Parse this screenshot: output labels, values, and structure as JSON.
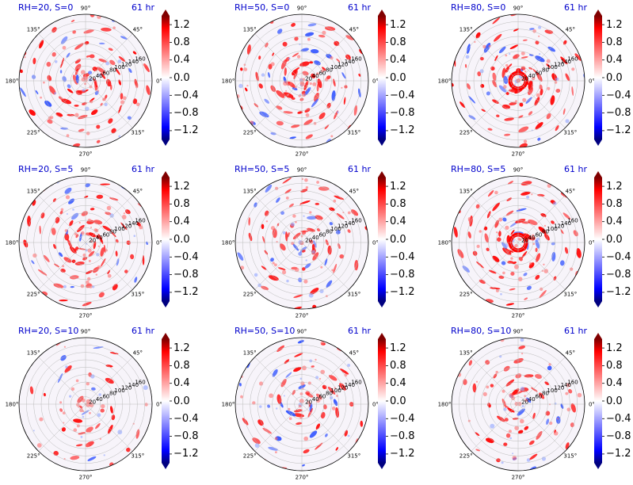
{
  "figure_title": "",
  "time_label": "61 hr",
  "angle_labels": [
    "90°",
    "45°",
    "0°",
    "315°",
    "270°",
    "225°",
    "180°",
    "135°"
  ],
  "radial_ticks": [
    "20",
    "40",
    "60",
    "80",
    "100",
    "120",
    "140",
    "160"
  ],
  "colorbar": {
    "ticks": [
      "1.2",
      "0.8",
      "0.4",
      "0.0",
      "−0.4",
      "−0.8",
      "−1.2"
    ],
    "colormap": "bwr",
    "vmin": -1.4,
    "vmax": 1.4,
    "extend": "both"
  },
  "chart_data": [
    {
      "type": "heatmap",
      "projection": "polar",
      "title": "RH=20, S=0",
      "time": "61 hr",
      "rlim": [
        0,
        180
      ],
      "clim": [
        -1.4,
        1.4
      ],
      "pattern": "multiple spiral rainbands, strong positive streaks throughout"
    },
    {
      "type": "heatmap",
      "projection": "polar",
      "title": "RH=50, S=0",
      "time": "61 hr",
      "rlim": [
        0,
        180
      ],
      "clim": [
        -1.4,
        1.4
      ],
      "pattern": "well-organized spiral rainbands"
    },
    {
      "type": "heatmap",
      "projection": "polar",
      "title": "RH=80, S=0",
      "time": "61 hr",
      "rlim": [
        0,
        180
      ],
      "clim": [
        -1.4,
        1.4
      ],
      "pattern": "compact eyewall ring near center"
    },
    {
      "type": "heatmap",
      "projection": "polar",
      "title": "RH=20, S=5",
      "time": "61 hr",
      "rlim": [
        0,
        180
      ],
      "clim": [
        -1.4,
        1.4
      ],
      "pattern": "scattered spiral bands"
    },
    {
      "type": "heatmap",
      "projection": "polar",
      "title": "RH=50, S=5",
      "time": "61 hr",
      "rlim": [
        0,
        180
      ],
      "clim": [
        -1.4,
        1.4
      ],
      "pattern": "spiral bands around center"
    },
    {
      "type": "heatmap",
      "projection": "polar",
      "title": "RH=80, S=5",
      "time": "61 hr",
      "rlim": [
        0,
        180
      ],
      "clim": [
        -1.4,
        1.4
      ],
      "pattern": "tight eyewall with bands"
    },
    {
      "type": "heatmap",
      "projection": "polar",
      "title": "RH=20, S=10",
      "time": "61 hr",
      "rlim": [
        0,
        180
      ],
      "clim": [
        -1.4,
        1.4
      ],
      "pattern": "weak, scattered convective cells"
    },
    {
      "type": "heatmap",
      "projection": "polar",
      "title": "RH=50, S=10",
      "time": "61 hr",
      "rlim": [
        0,
        180
      ],
      "clim": [
        -1.4,
        1.4
      ],
      "pattern": "asymmetric convection northeast of center"
    },
    {
      "type": "heatmap",
      "projection": "polar",
      "title": "RH=80, S=10",
      "time": "61 hr",
      "rlim": [
        0,
        180
      ],
      "clim": [
        -1.4,
        1.4
      ],
      "pattern": "asymmetric convection north to northeast"
    }
  ]
}
